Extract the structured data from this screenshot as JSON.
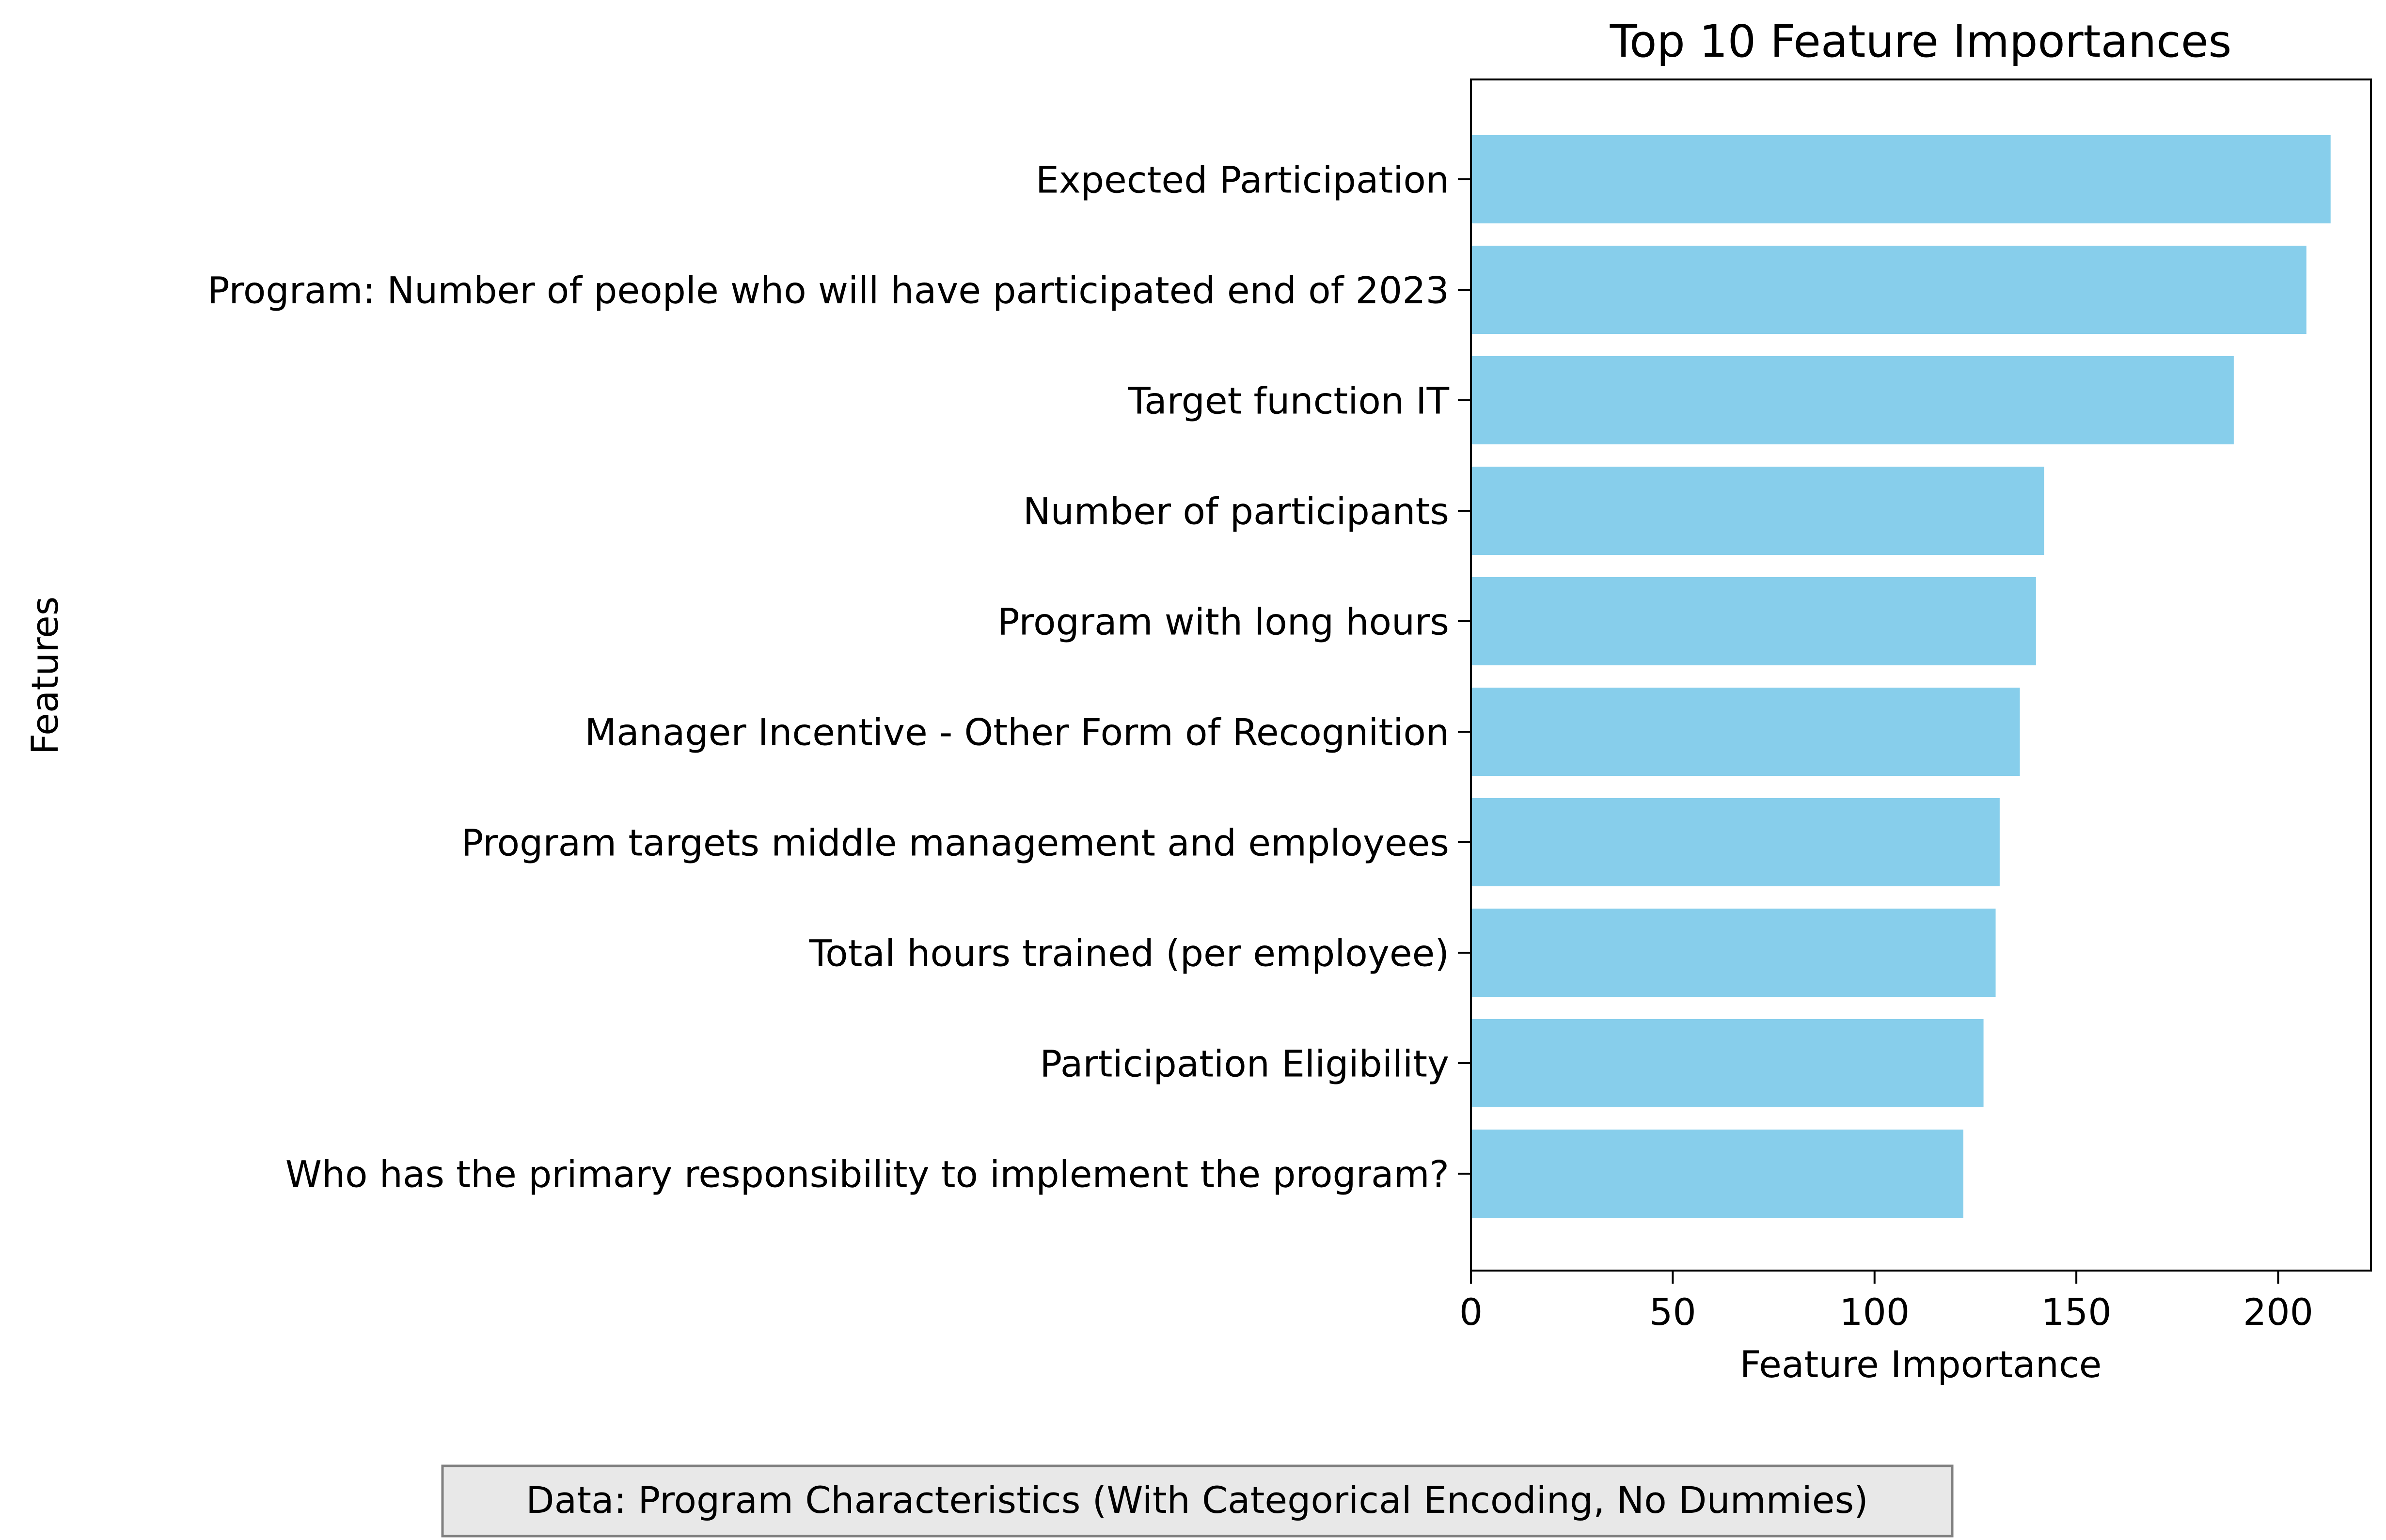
{
  "chart_data": {
    "type": "bar",
    "orientation": "horizontal",
    "title": "Top 10 Feature Importances",
    "xlabel": "Feature Importance",
    "ylabel": "Features",
    "xlim": [
      0,
      223
    ],
    "xticks": [
      0,
      50,
      100,
      150,
      200
    ],
    "grid": false,
    "bar_color": "#87CEEB",
    "categories": [
      "Expected Participation",
      "Program: Number of people who will have participated end of 2023",
      "Target function IT",
      "Number of participants",
      "Program with long hours",
      "Manager Incentive - Other Form of Recognition",
      "Program targets middle management and employees",
      "Total hours trained (per employee)",
      "Participation Eligibility",
      "Who has the primary responsibility to implement the program?"
    ],
    "values": [
      213,
      207,
      189,
      142,
      140,
      136,
      131,
      130,
      127,
      122
    ]
  },
  "footnote": "Data: Program Characteristics (With Categorical Encoding, No Dummies)",
  "footnote_box_fill": "#E8E8E8",
  "footnote_box_edge": "#808080"
}
